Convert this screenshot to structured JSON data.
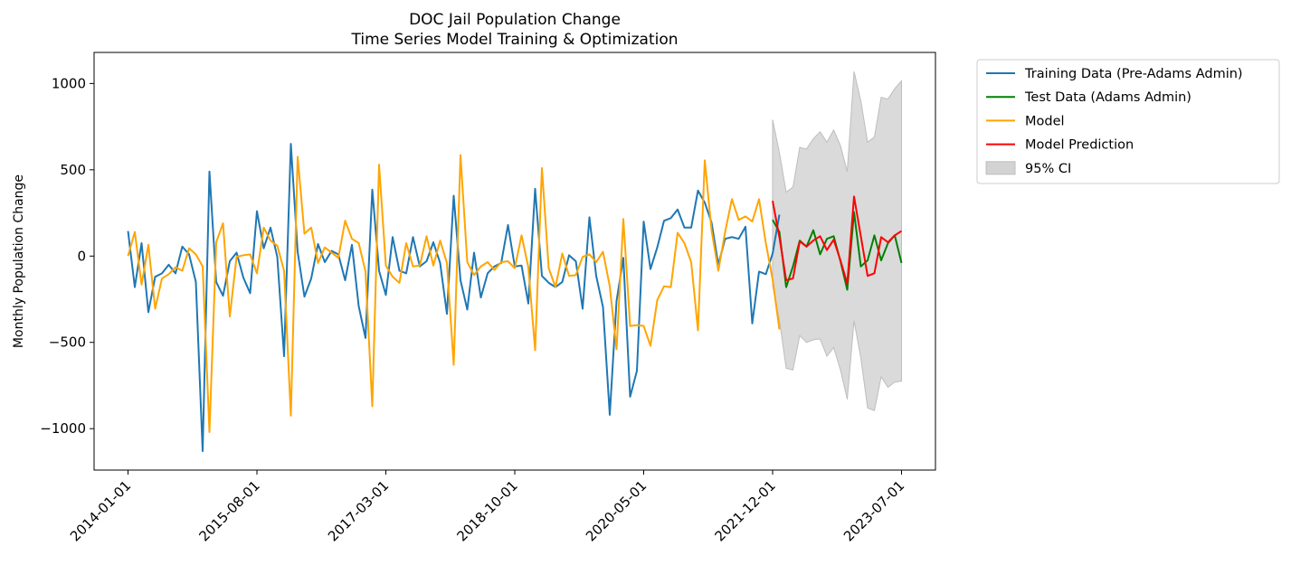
{
  "chart_data": {
    "type": "line",
    "title": "DOC Jail Population Change",
    "subtitle": "Time Series Model Training & Optimization",
    "xlabel": "",
    "ylabel": "Monthly Population Change",
    "xlim": [
      "2013-08-01",
      "2023-12-01"
    ],
    "ylim": [
      -1240,
      1180
    ],
    "x_ticks": [
      "2014-01-01",
      "2015-08-01",
      "2017-03-01",
      "2018-10-01",
      "2020-05-01",
      "2021-12-01",
      "2023-07-01"
    ],
    "y_ticks": [
      -1000,
      -500,
      0,
      500,
      1000
    ],
    "y_tick_labels": [
      "−1000",
      "−500",
      "0",
      "500",
      "1000"
    ],
    "grid": false,
    "legend": "outside-top-right",
    "train_start": "2014-01-01",
    "test_start": "2021-12-01",
    "series": [
      {
        "name": "Training Data (Pre-Adams Admin)",
        "color": "#1f77b4",
        "values": [
          145,
          -180,
          75,
          -325,
          -120,
          -100,
          -50,
          -100,
          55,
          10,
          -150,
          -1130,
          490,
          -150,
          -230,
          -30,
          20,
          -125,
          -215,
          260,
          45,
          165,
          -5,
          -580,
          650,
          25,
          -235,
          -130,
          70,
          -35,
          30,
          10,
          -140,
          65,
          -290,
          -475,
          385,
          -85,
          -225,
          110,
          -85,
          -100,
          110,
          -60,
          -30,
          80,
          -40,
          -335,
          350,
          -140,
          -310,
          20,
          -240,
          -100,
          -60,
          -40,
          180,
          -60,
          -55,
          -275,
          390,
          -115,
          -155,
          -180,
          -150,
          5,
          -30,
          -305,
          225,
          -115,
          -295,
          -920,
          -260,
          -10,
          -815,
          -665,
          200,
          -75,
          50,
          205,
          220,
          270,
          165,
          165,
          380,
          310,
          195,
          -50,
          100,
          110,
          100,
          170,
          -390,
          -90,
          -105,
          15,
          240
        ],
        "label_in_legend": true
      },
      {
        "name": "Test Data (Adams Admin)",
        "color": "#008000",
        "values": [
          210,
          140,
          -180,
          -60,
          90,
          55,
          150,
          10,
          100,
          115,
          -30,
          -195,
          255,
          -60,
          -25,
          120,
          -25,
          75,
          120,
          -40
        ]
      },
      {
        "name": "Model",
        "color": "#ffa500",
        "values": [
          0,
          140,
          -165,
          65,
          -305,
          -130,
          -105,
          -65,
          -85,
          45,
          10,
          -60,
          -1020,
          80,
          190,
          -350,
          -5,
          5,
          10,
          -100,
          165,
          90,
          60,
          -85,
          -925,
          575,
          130,
          165,
          -40,
          50,
          20,
          -10,
          205,
          100,
          75,
          -90,
          -870,
          530,
          -55,
          -120,
          -155,
          75,
          -60,
          -55,
          115,
          -55,
          90,
          -40,
          -630,
          585,
          -35,
          -110,
          -60,
          -35,
          -80,
          -35,
          -30,
          -70,
          120,
          -65,
          -545,
          510,
          -70,
          -180,
          15,
          -115,
          -110,
          -5,
          10,
          -35,
          25,
          -175,
          -540,
          215,
          -405,
          -400,
          -405,
          -520,
          -255,
          -175,
          -180,
          135,
          75,
          -35,
          -430,
          555,
          150,
          -85,
          140,
          330,
          210,
          230,
          200,
          330,
          75,
          -135,
          -425
        ]
      },
      {
        "name": "Model Prediction",
        "color": "#ff0000",
        "values": [
          320,
          110,
          -140,
          -130,
          85,
          55,
          90,
          115,
          35,
          95,
          -25,
          -160,
          345,
          115,
          -115,
          -100,
          110,
          80,
          120,
          145
        ]
      }
    ],
    "confidence_interval": {
      "name": "95% CI",
      "color": "#d3d3d3",
      "upper": [
        790,
        600,
        370,
        400,
        630,
        620,
        680,
        720,
        660,
        730,
        640,
        490,
        1070,
        900,
        660,
        690,
        920,
        910,
        970,
        1015
      ],
      "lower": [
        -170,
        -370,
        -650,
        -660,
        -460,
        -500,
        -485,
        -480,
        -580,
        -530,
        -660,
        -830,
        -375,
        -590,
        -880,
        -895,
        -700,
        -760,
        -730,
        -725
      ]
    }
  }
}
